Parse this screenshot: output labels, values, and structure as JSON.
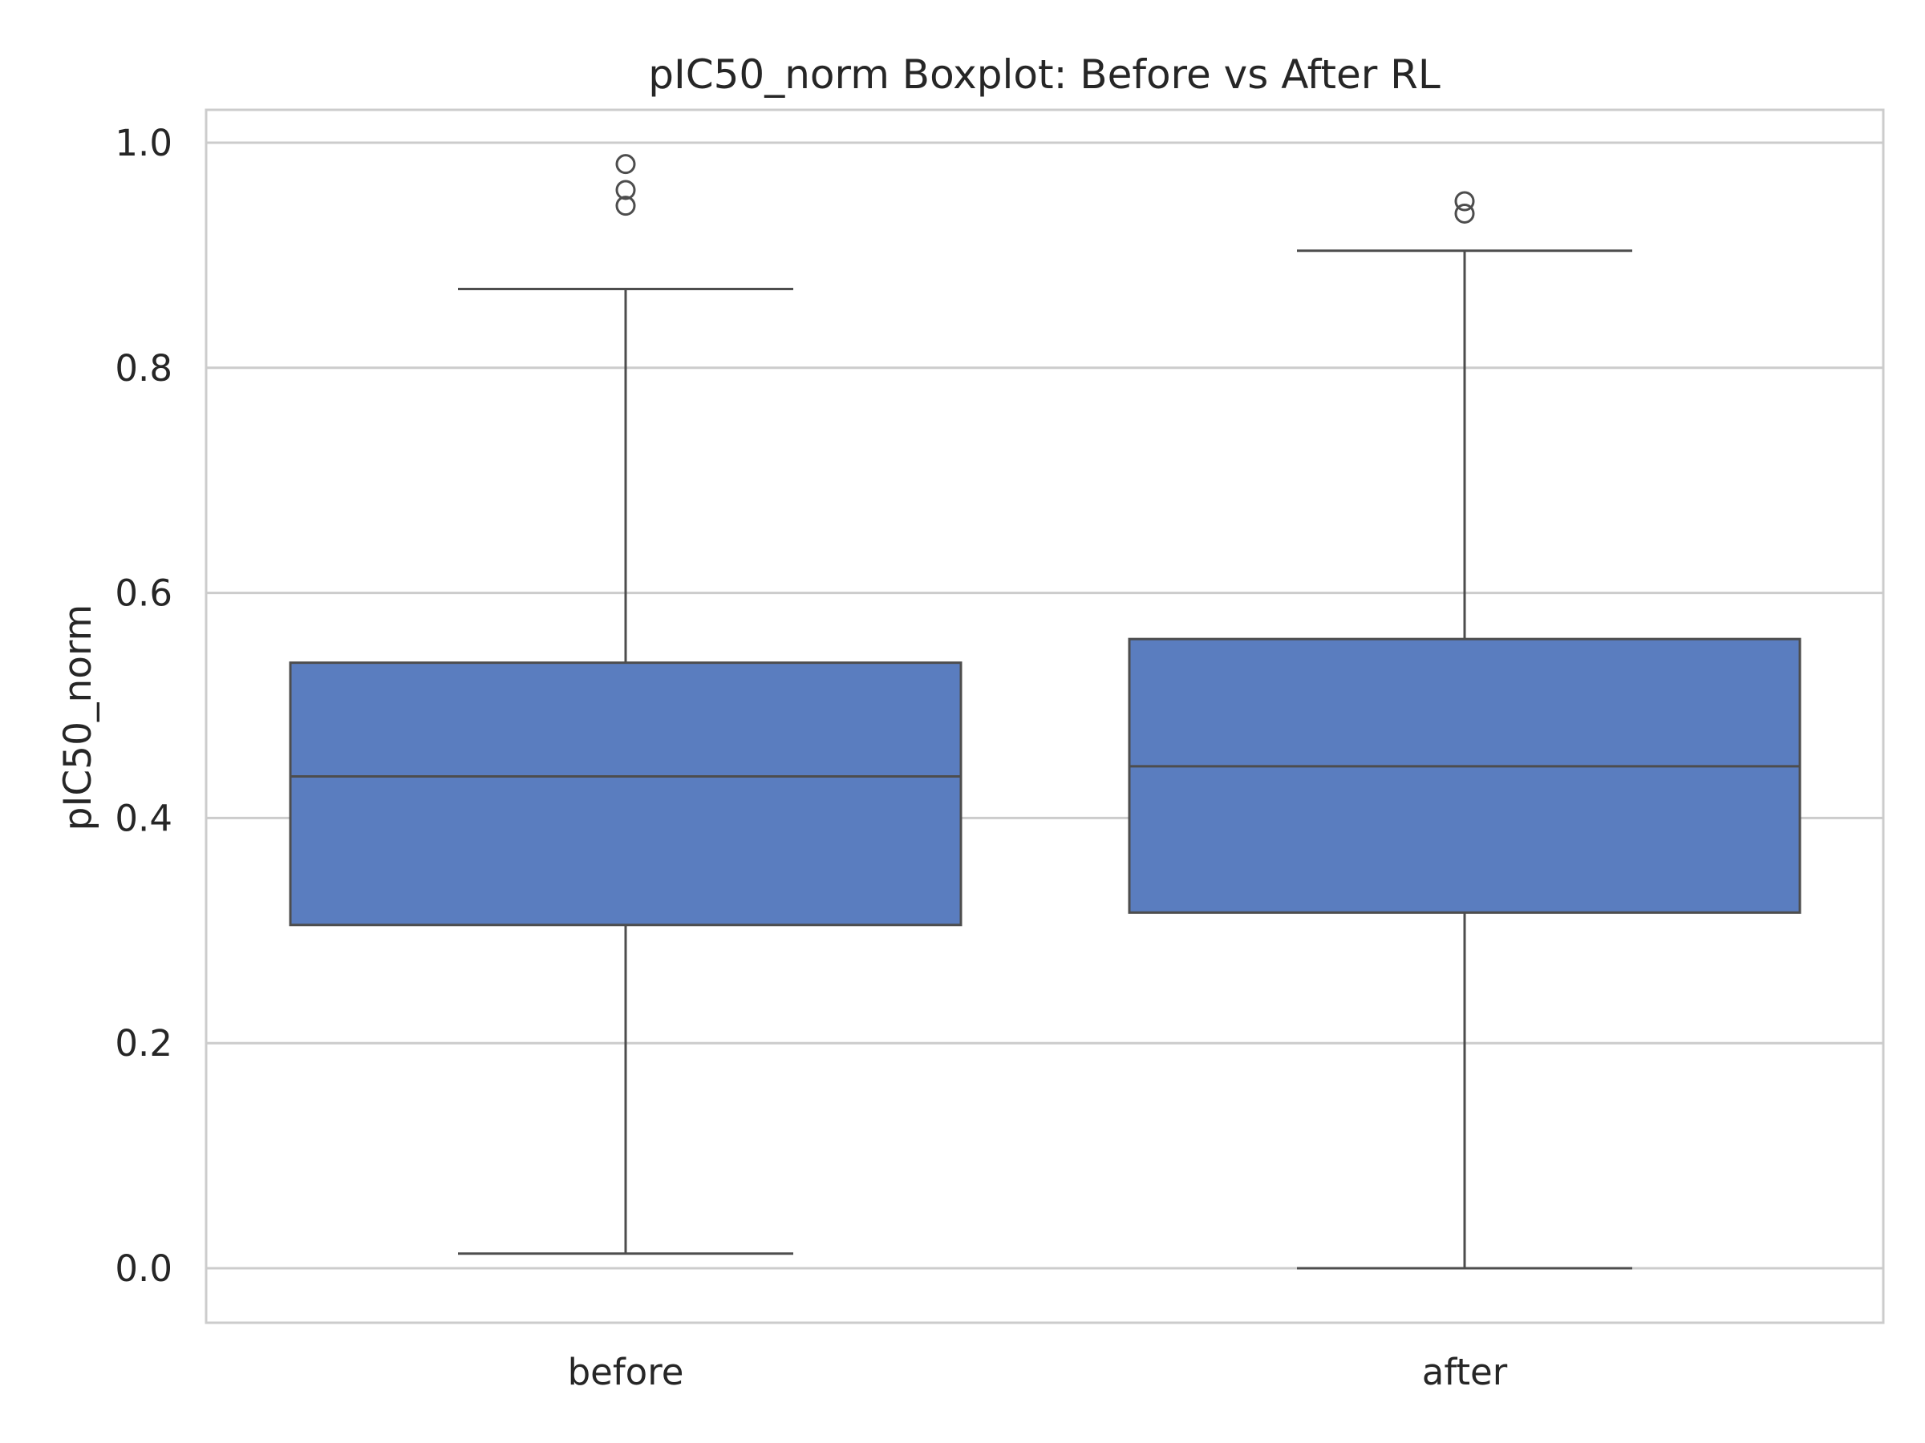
{
  "chart_data": {
    "type": "box",
    "title": "pIC50_norm Boxplot: Before vs After RL",
    "xlabel": "",
    "ylabel": "pIC50_norm",
    "ylim": [
      -0.05,
      1.03
    ],
    "yticks": [
      0.0,
      0.2,
      0.4,
      0.6,
      0.8,
      1.0
    ],
    "ytick_labels": [
      "0.0",
      "0.2",
      "0.4",
      "0.6",
      "0.8",
      "1.0"
    ],
    "categories": [
      "before",
      "after"
    ],
    "boxes": [
      {
        "category": "before",
        "whisker_low": 0.013,
        "q1": 0.305,
        "median": 0.437,
        "q3": 0.538,
        "whisker_high": 0.87,
        "outliers": [
          0.944,
          0.958,
          0.981
        ]
      },
      {
        "category": "after",
        "whisker_low": 0.0,
        "q1": 0.316,
        "median": 0.446,
        "q3": 0.559,
        "whisker_high": 0.904,
        "outliers": [
          0.937,
          0.948
        ]
      }
    ],
    "grid": true,
    "box_color": "#5a7dbf",
    "line_color": "#4d4d4d",
    "grid_color": "#cccccc"
  }
}
